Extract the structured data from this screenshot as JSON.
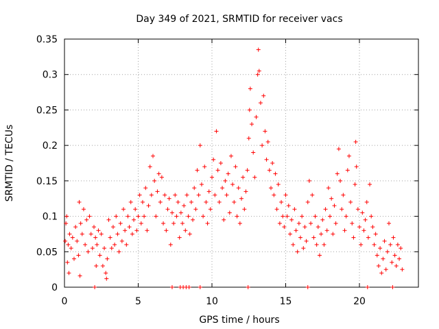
{
  "chart_data": {
    "type": "scatter",
    "title": "Day 349 of 2021, SRMTID for receiver vacs",
    "xlabel": "GPS time / hours",
    "ylabel": "SRMTID / TECUs",
    "xlim": [
      0,
      24
    ],
    "ylim": [
      0,
      0.35
    ],
    "xticks": [
      0,
      5,
      10,
      15,
      20
    ],
    "xtick_labels": [
      "0",
      "5",
      "10",
      "15",
      "20"
    ],
    "yticks": [
      0,
      0.05,
      0.1,
      0.15,
      0.2,
      0.25,
      0.3,
      0.35
    ],
    "ytick_labels": [
      "0",
      "0.05",
      "0.1",
      "0.15",
      "0.2",
      "0.25",
      "0.3",
      "0.35"
    ],
    "grid": true,
    "legend": "none",
    "marker": "plus",
    "series": [
      {
        "name": "SRMTID",
        "color": "#ff0000",
        "points": [
          [
            0.05,
            0.065
          ],
          [
            0.1,
            0.09
          ],
          [
            0.15,
            0.1
          ],
          [
            0.2,
            0.035
          ],
          [
            0.25,
            0.06
          ],
          [
            0.3,
            0.02
          ],
          [
            0.35,
            0.075
          ],
          [
            0.45,
            0.055
          ],
          [
            0.55,
            0.07
          ],
          [
            0.65,
            0.04
          ],
          [
            0.75,
            0.085
          ],
          [
            0.85,
            0.065
          ],
          [
            0.95,
            0.045
          ],
          [
            1.0,
            0.12
          ],
          [
            1.05,
            0.016
          ],
          [
            1.1,
            0.09
          ],
          [
            1.2,
            0.075
          ],
          [
            1.3,
            0.11
          ],
          [
            1.4,
            0.06
          ],
          [
            1.5,
            0.095
          ],
          [
            1.6,
            0.05
          ],
          [
            1.7,
            0.1
          ],
          [
            1.8,
            0.075
          ],
          [
            1.9,
            0.055
          ],
          [
            2.0,
            0.085
          ],
          [
            2.1,
            0.07
          ],
          [
            2.15,
            0.03
          ],
          [
            2.2,
            0.06
          ],
          [
            2.3,
            0.08
          ],
          [
            2.4,
            0.045
          ],
          [
            2.5,
            0.075
          ],
          [
            2.6,
            0.03
          ],
          [
            2.7,
            0.055
          ],
          [
            2.8,
            0.02
          ],
          [
            2.85,
            0.012
          ],
          [
            2.9,
            0.04
          ],
          [
            3.0,
            0.095
          ],
          [
            3.1,
            0.07
          ],
          [
            3.2,
            0.055
          ],
          [
            3.3,
            0.085
          ],
          [
            3.4,
            0.06
          ],
          [
            3.5,
            0.1
          ],
          [
            3.6,
            0.075
          ],
          [
            3.7,
            0.05
          ],
          [
            3.8,
            0.09
          ],
          [
            3.9,
            0.065
          ],
          [
            4.0,
            0.11
          ],
          [
            4.1,
            0.08
          ],
          [
            4.2,
            0.06
          ],
          [
            4.3,
            0.1
          ],
          [
            4.4,
            0.085
          ],
          [
            4.5,
            0.12
          ],
          [
            4.6,
            0.075
          ],
          [
            4.7,
            0.095
          ],
          [
            4.8,
            0.11
          ],
          [
            4.9,
            0.08
          ],
          [
            5.0,
            0.1
          ],
          [
            5.1,
            0.13
          ],
          [
            5.2,
            0.09
          ],
          [
            5.3,
            0.12
          ],
          [
            5.4,
            0.1
          ],
          [
            5.5,
            0.14
          ],
          [
            5.6,
            0.08
          ],
          [
            5.7,
            0.115
          ],
          [
            5.8,
            0.17
          ],
          [
            5.9,
            0.13
          ],
          [
            6.0,
            0.185
          ],
          [
            6.1,
            0.15
          ],
          [
            6.2,
            0.1
          ],
          [
            6.3,
            0.135
          ],
          [
            6.4,
            0.16
          ],
          [
            6.5,
            0.12
          ],
          [
            6.6,
            0.155
          ],
          [
            6.7,
            0.09
          ],
          [
            6.8,
            0.13
          ],
          [
            6.9,
            0.08
          ],
          [
            7.0,
            0.11
          ],
          [
            7.1,
            0.125
          ],
          [
            7.2,
            0.06
          ],
          [
            7.3,
            0.105
          ],
          [
            7.4,
            0.09
          ],
          [
            7.5,
            0.13
          ],
          [
            7.6,
            0.1
          ],
          [
            7.7,
            0.12
          ],
          [
            7.8,
            0.07
          ],
          [
            7.9,
            0.105
          ],
          [
            8.0,
            0.09
          ],
          [
            8.1,
            0.115
          ],
          [
            8.2,
            0.08
          ],
          [
            8.3,
            0.13
          ],
          [
            8.4,
            0.1
          ],
          [
            8.5,
            0.075
          ],
          [
            8.6,
            0.12
          ],
          [
            8.7,
            0.095
          ],
          [
            8.8,
            0.14
          ],
          [
            8.9,
            0.11
          ],
          [
            9.0,
            0.165
          ],
          [
            9.1,
            0.13
          ],
          [
            9.2,
            0.2
          ],
          [
            9.3,
            0.145
          ],
          [
            9.4,
            0.1
          ],
          [
            9.5,
            0.17
          ],
          [
            9.6,
            0.12
          ],
          [
            9.7,
            0.09
          ],
          [
            9.8,
            0.135
          ],
          [
            9.9,
            0.11
          ],
          [
            10.0,
            0.155
          ],
          [
            10.1,
            0.18
          ],
          [
            10.2,
            0.13
          ],
          [
            10.3,
            0.22
          ],
          [
            10.4,
            0.165
          ],
          [
            10.5,
            0.12
          ],
          [
            10.6,
            0.175
          ],
          [
            10.7,
            0.14
          ],
          [
            10.8,
            0.095
          ],
          [
            10.9,
            0.15
          ],
          [
            11.0,
            0.13
          ],
          [
            11.1,
            0.16
          ],
          [
            11.2,
            0.105
          ],
          [
            11.3,
            0.185
          ],
          [
            11.4,
            0.145
          ],
          [
            11.5,
            0.12
          ],
          [
            11.6,
            0.17
          ],
          [
            11.7,
            0.1
          ],
          [
            11.8,
            0.14
          ],
          [
            11.9,
            0.09
          ],
          [
            12.0,
            0.125
          ],
          [
            12.1,
            0.155
          ],
          [
            12.2,
            0.11
          ],
          [
            12.3,
            0.135
          ],
          [
            12.4,
            0.165
          ],
          [
            12.5,
            0.21
          ],
          [
            12.55,
            0.25
          ],
          [
            12.6,
            0.28
          ],
          [
            12.7,
            0.23
          ],
          [
            12.8,
            0.19
          ],
          [
            12.9,
            0.155
          ],
          [
            13.0,
            0.24
          ],
          [
            13.1,
            0.3
          ],
          [
            13.15,
            0.335
          ],
          [
            13.2,
            0.305
          ],
          [
            13.3,
            0.26
          ],
          [
            13.4,
            0.2
          ],
          [
            13.5,
            0.27
          ],
          [
            13.6,
            0.22
          ],
          [
            13.7,
            0.18
          ],
          [
            13.8,
            0.205
          ],
          [
            13.9,
            0.165
          ],
          [
            14.0,
            0.14
          ],
          [
            14.1,
            0.175
          ],
          [
            14.2,
            0.13
          ],
          [
            14.3,
            0.16
          ],
          [
            14.4,
            0.11
          ],
          [
            14.5,
            0.145
          ],
          [
            14.6,
            0.09
          ],
          [
            14.7,
            0.12
          ],
          [
            14.8,
            0.1
          ],
          [
            14.9,
            0.085
          ],
          [
            15.0,
            0.13
          ],
          [
            15.1,
            0.1
          ],
          [
            15.2,
            0.115
          ],
          [
            15.3,
            0.075
          ],
          [
            15.4,
            0.095
          ],
          [
            15.5,
            0.06
          ],
          [
            15.6,
            0.11
          ],
          [
            15.7,
            0.08
          ],
          [
            15.8,
            0.05
          ],
          [
            15.9,
            0.09
          ],
          [
            16.0,
            0.07
          ],
          [
            16.1,
            0.1
          ],
          [
            16.2,
            0.055
          ],
          [
            16.3,
            0.085
          ],
          [
            16.4,
            0.065
          ],
          [
            16.5,
            0.12
          ],
          [
            16.6,
            0.15
          ],
          [
            16.7,
            0.09
          ],
          [
            16.8,
            0.13
          ],
          [
            16.9,
            0.07
          ],
          [
            17.0,
            0.1
          ],
          [
            17.1,
            0.06
          ],
          [
            17.2,
            0.085
          ],
          [
            17.3,
            0.045
          ],
          [
            17.4,
            0.075
          ],
          [
            17.5,
            0.095
          ],
          [
            17.6,
            0.06
          ],
          [
            17.7,
            0.11
          ],
          [
            17.8,
            0.08
          ],
          [
            17.9,
            0.14
          ],
          [
            18.0,
            0.1
          ],
          [
            18.1,
            0.125
          ],
          [
            18.2,
            0.075
          ],
          [
            18.3,
            0.115
          ],
          [
            18.4,
            0.09
          ],
          [
            18.5,
            0.16
          ],
          [
            18.6,
            0.195
          ],
          [
            18.7,
            0.15
          ],
          [
            18.8,
            0.11
          ],
          [
            18.9,
            0.13
          ],
          [
            19.0,
            0.08
          ],
          [
            19.1,
            0.1
          ],
          [
            19.2,
            0.165
          ],
          [
            19.3,
            0.185
          ],
          [
            19.4,
            0.12
          ],
          [
            19.5,
            0.09
          ],
          [
            19.6,
            0.07
          ],
          [
            19.7,
            0.145
          ],
          [
            19.75,
            0.205
          ],
          [
            19.8,
            0.17
          ],
          [
            19.9,
            0.11
          ],
          [
            20.0,
            0.085
          ],
          [
            20.1,
            0.06
          ],
          [
            20.2,
            0.105
          ],
          [
            20.3,
            0.08
          ],
          [
            20.4,
            0.095
          ],
          [
            20.5,
            0.12
          ],
          [
            20.6,
            0.07
          ],
          [
            20.7,
            0.145
          ],
          [
            20.8,
            0.1
          ],
          [
            20.9,
            0.085
          ],
          [
            21.0,
            0.06
          ],
          [
            21.1,
            0.075
          ],
          [
            21.2,
            0.045
          ],
          [
            21.3,
            0.03
          ],
          [
            21.4,
            0.055
          ],
          [
            21.5,
            0.02
          ],
          [
            21.6,
            0.04
          ],
          [
            21.7,
            0.065
          ],
          [
            21.8,
            0.025
          ],
          [
            21.9,
            0.05
          ],
          [
            22.0,
            0.09
          ],
          [
            22.1,
            0.06
          ],
          [
            22.2,
            0.035
          ],
          [
            22.3,
            0.07
          ],
          [
            22.4,
            0.045
          ],
          [
            22.5,
            0.03
          ],
          [
            22.6,
            0.06
          ],
          [
            22.7,
            0.04
          ],
          [
            22.8,
            0.055
          ],
          [
            22.9,
            0.025
          ],
          [
            2.05,
            0.0
          ],
          [
            7.3,
            0.0
          ],
          [
            7.85,
            0.0
          ],
          [
            8.05,
            0.0
          ],
          [
            8.25,
            0.0
          ],
          [
            8.45,
            0.0
          ],
          [
            9.2,
            0.0
          ],
          [
            12.45,
            0.0
          ],
          [
            16.5,
            0.0
          ],
          [
            20.55,
            0.0
          ],
          [
            22.25,
            0.0
          ]
        ]
      }
    ]
  }
}
